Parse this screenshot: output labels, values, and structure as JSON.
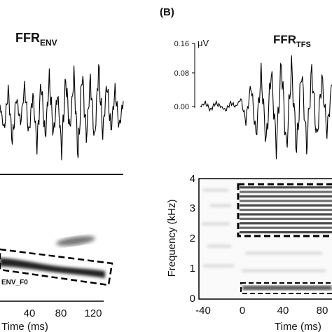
{
  "panel_b_label": "(B)",
  "left_panel": {
    "title_main": "FFR",
    "title_sub": "ENV",
    "box_label": "ENV_F0",
    "xlabel": "Time (ms)",
    "xticks": [
      "40",
      "80",
      "120"
    ]
  },
  "right_panel": {
    "title_main": "FFR",
    "title_sub": "TFS",
    "unit": "μV",
    "yticks": [
      "0.16",
      "0.08",
      "0.00"
    ],
    "ylabel": "Frequency (kHz)",
    "y_tick_labels": [
      "4",
      "3",
      "2",
      "1",
      "0"
    ],
    "xlabel": "Time (ms)",
    "xticks": [
      "-40",
      "0",
      "40",
      "80"
    ]
  },
  "chart_data": [
    {
      "type": "line",
      "panel": "A-top",
      "title": "FFR ENV",
      "xlim": [
        -10,
        140
      ],
      "x": [
        -10,
        -5,
        0,
        5,
        10,
        15,
        20,
        25,
        30,
        35,
        40,
        45,
        50,
        55,
        60,
        65,
        70,
        75,
        80,
        85,
        90,
        95,
        100,
        105,
        110,
        115,
        120,
        125,
        130,
        135,
        140
      ],
      "values": [
        0.02,
        -0.05,
        0.06,
        -0.08,
        0.04,
        -0.03,
        0.07,
        -0.06,
        0.05,
        -0.09,
        0.08,
        -0.07,
        0.09,
        -0.06,
        0.05,
        -0.1,
        0.09,
        -0.05,
        0.1,
        -0.12,
        0.11,
        -0.07,
        0.09,
        -0.08,
        0.12,
        -0.06,
        0.08,
        -0.05,
        0.06,
        -0.04,
        0.03
      ]
    },
    {
      "type": "heatmap",
      "panel": "A-bottom",
      "xlabel": "Time (ms)",
      "x_ticks": [
        40,
        80,
        120
      ],
      "annotation": "ENV_F0"
    },
    {
      "type": "line",
      "panel": "B-top",
      "title": "FFR TFS",
      "ylabel_unit": "μV",
      "y_ticks": [
        0.0,
        0.08,
        0.16
      ],
      "xlim": [
        -40,
        90
      ],
      "x": [
        -40,
        -35,
        -30,
        -25,
        -20,
        -15,
        -10,
        -5,
        0,
        5,
        10,
        15,
        20,
        25,
        30,
        35,
        40,
        45,
        50,
        55,
        60,
        65,
        70,
        75,
        80,
        85,
        90
      ],
      "values": [
        0.0,
        0.01,
        -0.01,
        0.01,
        0.0,
        -0.01,
        0.01,
        0.0,
        0.02,
        -0.04,
        0.06,
        -0.08,
        0.09,
        -0.1,
        0.1,
        -0.11,
        0.12,
        -0.12,
        0.11,
        -0.12,
        0.1,
        -0.11,
        0.1,
        -0.09,
        0.08,
        -0.07,
        0.06
      ]
    },
    {
      "type": "heatmap",
      "panel": "B-bottom",
      "xlabel": "Time (ms)",
      "ylabel": "Frequency (kHz)",
      "ylim": [
        0,
        4
      ],
      "x_ticks": [
        -40,
        0,
        40,
        80
      ],
      "y_ticks": [
        0,
        1,
        2,
        3,
        4
      ]
    }
  ]
}
